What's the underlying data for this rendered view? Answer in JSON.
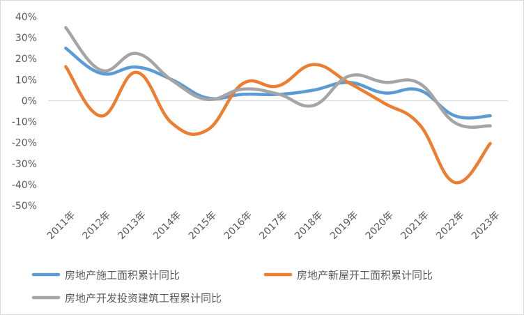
{
  "chart_data": {
    "type": "line",
    "categories": [
      "2011年",
      "2012年",
      "2013年",
      "2014年",
      "2015年",
      "2016年",
      "2017年",
      "2018年",
      "2019年",
      "2020年",
      "2021年",
      "2022年",
      "2023年"
    ],
    "ylim": [
      -50,
      40
    ],
    "yticks": [
      "40%",
      "30%",
      "20%",
      "10%",
      "0%",
      "-10%",
      "-20%",
      "-30%",
      "-40%",
      "-50%"
    ],
    "grid": false,
    "smooth": true,
    "legend_position": "bottom",
    "series": [
      {
        "name": "房地产施工面积累计同比",
        "color": "#5B9BD5",
        "values": [
          25,
          13,
          16,
          10,
          1.3,
          3,
          3,
          5,
          8.7,
          3.7,
          5,
          -7.2,
          -7.2
        ]
      },
      {
        "name": "房地产新屋开工面积累计同比",
        "color": "#ED7D31",
        "values": [
          16.2,
          -7.3,
          13.5,
          -10.7,
          -14,
          8.1,
          7,
          17.2,
          8.5,
          -1.2,
          -11.4,
          -39,
          -20.4
        ]
      },
      {
        "name": "房地产开发投资建筑工程累计同比",
        "color": "#A5A5A5",
        "values": [
          34.8,
          14.5,
          22.5,
          9.7,
          0.6,
          5.5,
          3.2,
          -2.3,
          11.7,
          8.8,
          8.2,
          -10.5,
          -12
        ]
      }
    ]
  }
}
